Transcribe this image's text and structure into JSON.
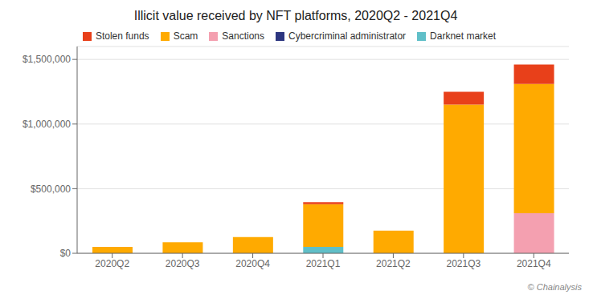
{
  "chart_data": {
    "type": "bar",
    "title": "Illicit value received by NFT platforms, 2020Q2 - 2021Q4",
    "categories": [
      "2020Q2",
      "2020Q3",
      "2020Q4",
      "2021Q1",
      "2021Q2",
      "2021Q3",
      "2021Q4"
    ],
    "series": [
      {
        "name": "Stolen funds",
        "color": "#e8401a",
        "values": [
          0,
          0,
          0,
          15000,
          0,
          100000,
          150000
        ]
      },
      {
        "name": "Scam",
        "color": "#ffaa00",
        "values": [
          50000,
          85000,
          125000,
          330000,
          175000,
          1150000,
          1000000
        ]
      },
      {
        "name": "Sanctions",
        "color": "#f4a0b0",
        "values": [
          0,
          0,
          0,
          0,
          0,
          0,
          310000
        ]
      },
      {
        "name": "Cybercriminal administrator",
        "color": "#2d3680",
        "values": [
          0,
          0,
          0,
          0,
          0,
          0,
          0
        ]
      },
      {
        "name": "Darknet market",
        "color": "#60bfc8",
        "values": [
          0,
          0,
          0,
          50000,
          0,
          0,
          0
        ]
      }
    ],
    "stacked": true,
    "ylim": [
      0,
      1600000
    ],
    "yticks": [
      {
        "value": 0,
        "label": "$0"
      },
      {
        "value": 500000,
        "label": "$500,000"
      },
      {
        "value": 1000000,
        "label": "$1,000,000"
      },
      {
        "value": 1500000,
        "label": "$1,500,000"
      }
    ],
    "grid": true,
    "legend": "top",
    "annotations": [
      "© Chainalysis"
    ]
  }
}
